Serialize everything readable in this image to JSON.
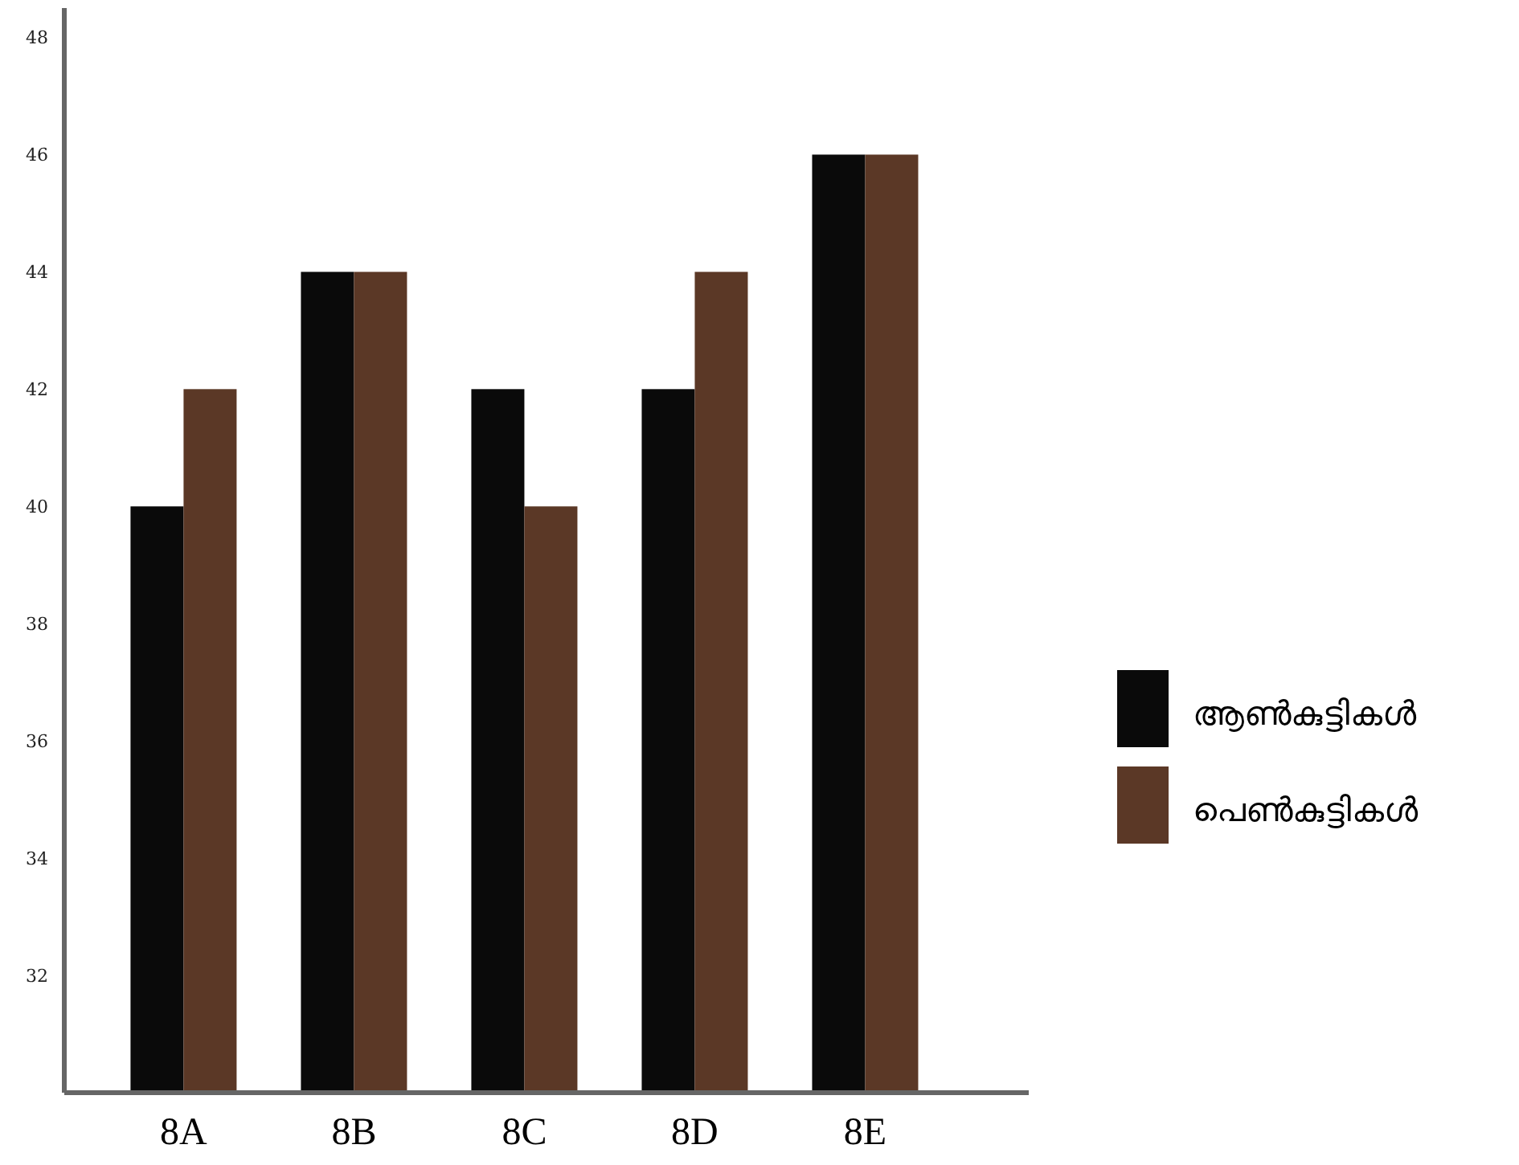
{
  "chart_data": {
    "type": "bar",
    "categories": [
      "8A",
      "8B",
      "8C",
      "8D",
      "8E"
    ],
    "series": [
      {
        "name": "ആൺകുട്ടികൾ",
        "color": "#0a0a0a",
        "values": [
          40,
          44,
          42,
          42,
          46
        ]
      },
      {
        "name": "പെൺകുട്ടികൾ",
        "color": "#5b3826",
        "values": [
          42,
          44,
          40,
          44,
          46
        ]
      }
    ],
    "ylim": [
      30,
      48.5
    ],
    "yticks": [
      32,
      34,
      36,
      38,
      40,
      42,
      44,
      46,
      48
    ],
    "grid": false,
    "legend": "right"
  }
}
